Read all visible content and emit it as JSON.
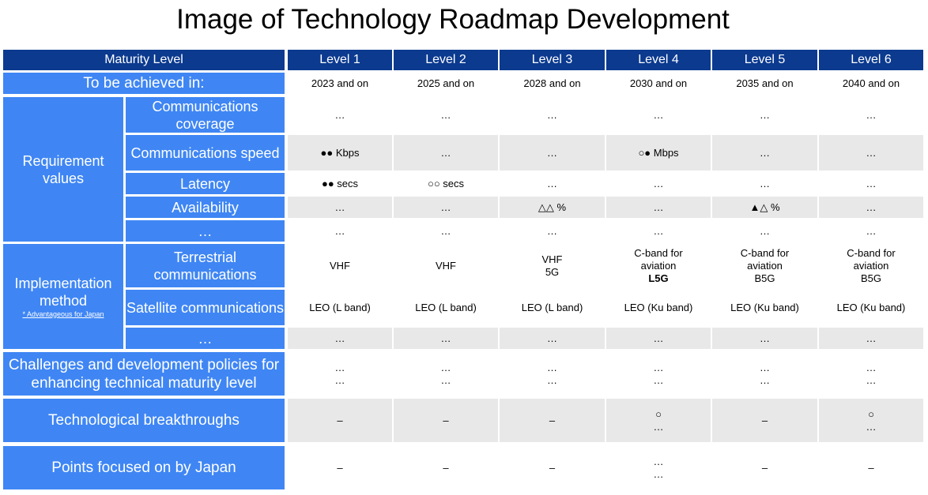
{
  "title": "Image of Technology Roadmap Development",
  "header": {
    "maturity_label": "Maturity Level",
    "levels": [
      "Level 1",
      "Level 2",
      "Level 3",
      "Level 4",
      "Level 5",
      "Level 6"
    ]
  },
  "achieved": {
    "label": "To be achieved in:",
    "values": [
      "2023 and on",
      "2025 and on",
      "2028 and on",
      "2030 and on",
      "2035 and on",
      "2040 and on"
    ]
  },
  "requirement": {
    "group_label": "Requirement values",
    "rows": [
      {
        "label": "Communications coverage",
        "values": [
          "…",
          "…",
          "…",
          "…",
          "…",
          "…"
        ]
      },
      {
        "label": "Communications speed",
        "values": [
          "●● Kbps",
          "…",
          "…",
          "○● Mbps",
          "…",
          "…"
        ]
      },
      {
        "label": "Latency",
        "values": [
          "●● secs",
          "○○ secs",
          "…",
          "…",
          "…",
          "…"
        ]
      },
      {
        "label": "Availability",
        "values": [
          "…",
          "…",
          "△△ %",
          "…",
          "▲△ %",
          "…"
        ]
      },
      {
        "label": "…",
        "values": [
          "…",
          "…",
          "…",
          "…",
          "…",
          "…"
        ]
      }
    ]
  },
  "implementation": {
    "group_label": "Implementation method",
    "note": "* Advantageous for Japan",
    "rows": [
      {
        "label": "Terrestrial communications",
        "values": [
          [
            "VHF"
          ],
          [
            "VHF"
          ],
          [
            "VHF",
            "5G"
          ],
          [
            "C-band for",
            "aviation",
            "L5G"
          ],
          [
            "C-band for",
            "aviation",
            "B5G"
          ],
          [
            "C-band for",
            "aviation",
            "B5G"
          ]
        ]
      },
      {
        "label": "Satellite communications",
        "values": [
          [
            "LEO (L band)"
          ],
          [
            "LEO (L band)"
          ],
          [
            "LEO (L band)"
          ],
          [
            "LEO (Ku band)"
          ],
          [
            "LEO (Ku band)"
          ],
          [
            "LEO (Ku band)"
          ]
        ]
      },
      {
        "label": "…",
        "values": [
          [
            "…"
          ],
          [
            "…"
          ],
          [
            "…"
          ],
          [
            "…"
          ],
          [
            "…"
          ],
          [
            "…"
          ]
        ]
      }
    ]
  },
  "challenges": {
    "label": "Challenges and development policies for enhancing technical maturity level",
    "values": [
      [
        "…",
        "…"
      ],
      [
        "…",
        "…"
      ],
      [
        "…",
        "…"
      ],
      [
        "…",
        "…"
      ],
      [
        "…",
        "…"
      ],
      [
        "…",
        "…"
      ]
    ]
  },
  "breakthroughs": {
    "label": "Technological breakthroughs",
    "values": [
      [
        "–"
      ],
      [
        "–"
      ],
      [
        "–"
      ],
      [
        "○",
        "…"
      ],
      [
        "–"
      ],
      [
        "○",
        "…"
      ]
    ]
  },
  "japan_focus": {
    "label": "Points focused on by Japan",
    "values": [
      [
        "–"
      ],
      [
        "–"
      ],
      [
        "–"
      ],
      [
        "…",
        "…"
      ],
      [
        "–"
      ],
      [
        "–"
      ]
    ]
  },
  "colors": {
    "header_dark": "#0b3a8f",
    "header_blue": "#3f86f4",
    "row_grey": "#e8e8e8"
  }
}
